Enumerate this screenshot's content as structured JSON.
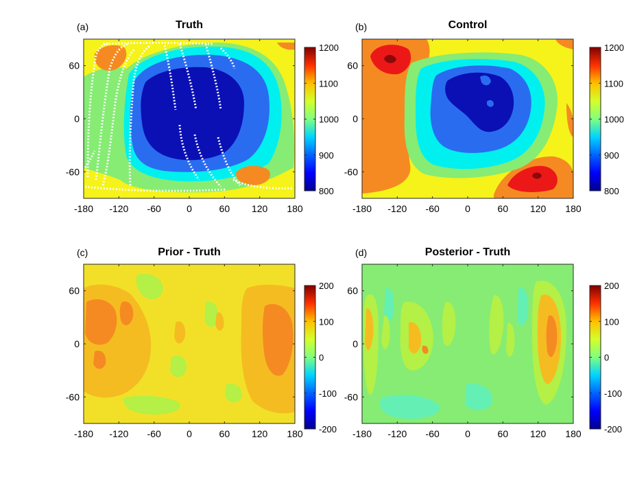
{
  "colormap": [
    "#00008f",
    "#0000ff",
    "#0080ff",
    "#00ffff",
    "#80ff80",
    "#ffff00",
    "#ff8000",
    "#ff0000",
    "#800000"
  ],
  "fill_colors": {
    "dark_blue": "#0a10b4",
    "blue": "#2a6cf0",
    "cyan": "#00f0f0",
    "green": "#86ec74",
    "yellow": "#f5f31a",
    "orange": "#f58a22",
    "red": "#ec1818",
    "dark_red": "#8a0a0a",
    "light_green": "#b4f046",
    "light_orange": "#f5bc22",
    "pale_yellow": "#f2e028",
    "mint": "#64f0b4",
    "teal_green": "#7ee89a",
    "track_white": "#ffffff"
  },
  "chart_data": [
    {
      "type": "heatmap",
      "panel_label": "(a)",
      "title": "Truth",
      "xticks": [
        -180,
        -120,
        -60,
        0,
        60,
        120,
        180
      ],
      "yticks": [
        60,
        0,
        -60
      ],
      "xlim": [
        -180,
        180
      ],
      "ylim": [
        -90,
        90
      ],
      "colorbar": {
        "ticks": [
          1200,
          1100,
          1000,
          900,
          800
        ],
        "range": [
          800,
          1200
        ]
      },
      "features": [
        {
          "kind": "minimum",
          "lon": 20,
          "lat": 10,
          "value": 820
        },
        {
          "kind": "maximum",
          "lon": -150,
          "lat": 68,
          "value": 1110
        },
        {
          "kind": "maximum",
          "lon": 105,
          "lat": -58,
          "value": 1110
        }
      ],
      "overlay": "satellite ground tracks (white dots)"
    },
    {
      "type": "heatmap",
      "panel_label": "(b)",
      "title": "Control",
      "xticks": [
        -180,
        -120,
        -60,
        0,
        60,
        120,
        180
      ],
      "yticks": [
        60,
        0,
        -60
      ],
      "xlim": [
        -180,
        180
      ],
      "ylim": [
        -90,
        90
      ],
      "colorbar": {
        "ticks": [
          1200,
          1100,
          1000,
          900,
          800
        ],
        "range": [
          800,
          1200
        ]
      },
      "features": [
        {
          "kind": "minimum",
          "lon": 25,
          "lat": 25,
          "value": 850
        },
        {
          "kind": "maximum",
          "lon": -135,
          "lat": 65,
          "value": 1180
        },
        {
          "kind": "maximum",
          "lon": 120,
          "lat": -65,
          "value": 1180
        }
      ]
    },
    {
      "type": "heatmap",
      "panel_label": "(c)",
      "title": "Prior - Truth",
      "xticks": [
        -180,
        -120,
        -60,
        0,
        60,
        120,
        180
      ],
      "yticks": [
        60,
        0,
        -60
      ],
      "xlim": [
        -180,
        180
      ],
      "ylim": [
        -90,
        90
      ],
      "colorbar": {
        "ticks": [
          200,
          100,
          0,
          -100,
          -200
        ],
        "range": [
          -200,
          200
        ]
      },
      "features": [
        {
          "kind": "maximum",
          "lon": 165,
          "lat": 0,
          "value": 110
        },
        {
          "kind": "maximum",
          "lon": -100,
          "lat": 30,
          "value": 90
        }
      ]
    },
    {
      "type": "heatmap",
      "panel_label": "(d)",
      "title": "Posterior - Truth",
      "xticks": [
        -180,
        -120,
        -60,
        0,
        60,
        120,
        180
      ],
      "yticks": [
        60,
        0,
        -60
      ],
      "xlim": [
        -180,
        180
      ],
      "ylim": [
        -90,
        90
      ],
      "colorbar": {
        "ticks": [
          200,
          100,
          0,
          -100,
          -200
        ],
        "range": [
          -200,
          200
        ]
      },
      "features": [
        {
          "kind": "maximum",
          "lon": 140,
          "lat": 0,
          "value": 90
        },
        {
          "kind": "maximum",
          "lon": -168,
          "lat": 0,
          "value": 60
        }
      ]
    }
  ]
}
